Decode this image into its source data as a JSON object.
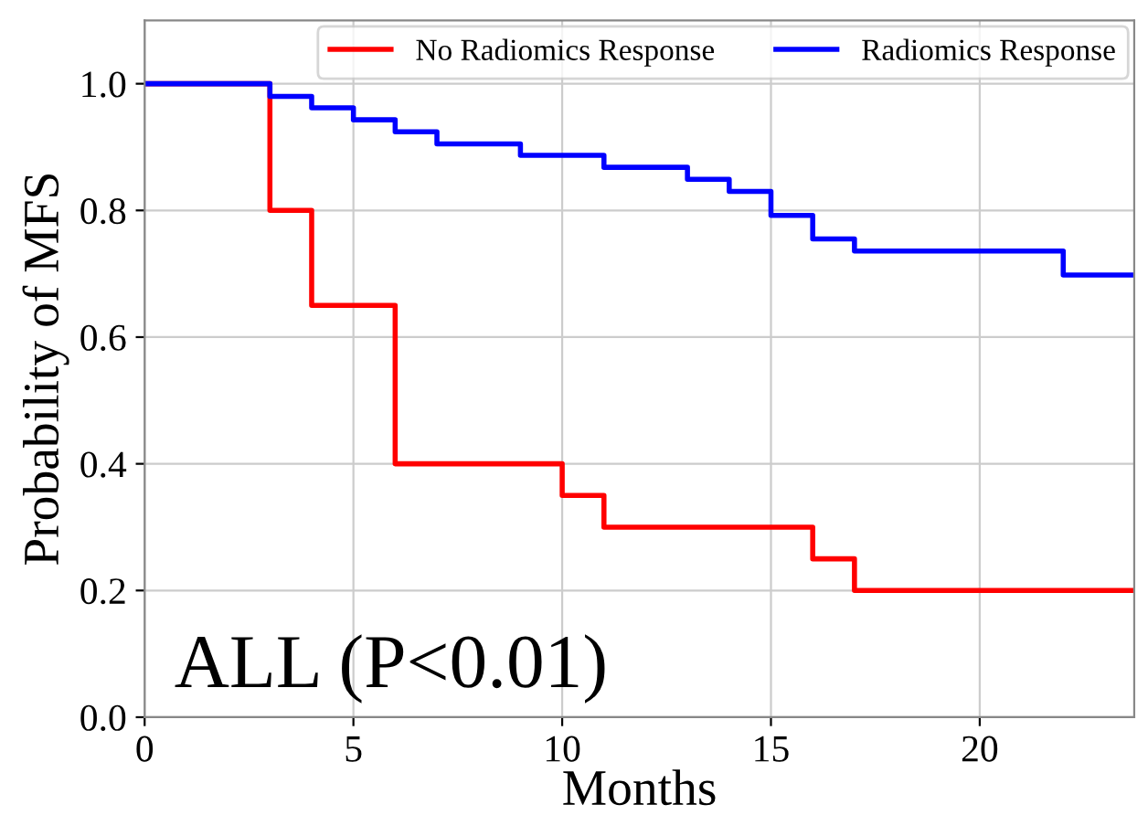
{
  "chart_data": {
    "type": "step",
    "xlabel": "Months",
    "ylabel": "Probability of MFS",
    "series": [
      {
        "name": "No Radiomics Response",
        "color": "#ff0000",
        "x": [
          0,
          3,
          4,
          6,
          10,
          11,
          16,
          17,
          23.7
        ],
        "values": [
          1.0,
          0.8,
          0.65,
          0.4,
          0.35,
          0.3,
          0.25,
          0.2,
          0.2
        ]
      },
      {
        "name": "Radiomics Response",
        "color": "#0000ff",
        "x": [
          0,
          3,
          4,
          5,
          6,
          7,
          9,
          11,
          13,
          14,
          15,
          16,
          17,
          22,
          23.7
        ],
        "values": [
          1.0,
          0.98,
          0.962,
          0.943,
          0.924,
          0.905,
          0.887,
          0.868,
          0.849,
          0.83,
          0.792,
          0.755,
          0.736,
          0.698,
          0.698
        ]
      }
    ],
    "xlim": [
      0,
      23.7
    ],
    "ylim": [
      0,
      1.1
    ],
    "xticks": [
      0,
      5,
      10,
      15,
      20
    ],
    "yticks": [
      {
        "value": 0,
        "label": "0.0"
      },
      {
        "value": 0.2,
        "label": "0.2"
      },
      {
        "value": 0.4,
        "label": "0.4"
      },
      {
        "value": 0.6,
        "label": "0.6"
      },
      {
        "value": 0.8,
        "label": "0.8"
      },
      {
        "value": 1.0,
        "label": "1.0"
      }
    ],
    "grid": true,
    "legend": "top right",
    "annotations": [
      "ALL (P<0.01)"
    ]
  }
}
